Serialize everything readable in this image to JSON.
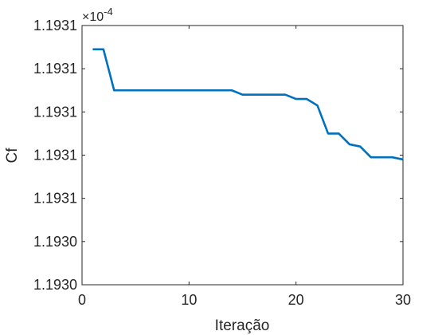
{
  "chart_data": {
    "type": "line",
    "xlabel": "Iteração",
    "ylabel": "Cf",
    "exponent_label": "×10",
    "exponent_power": "-4",
    "xlim": [
      0,
      30
    ],
    "ylim": [
      1.19298,
      1.1931
    ],
    "x_ticks": [
      0,
      10,
      20,
      30
    ],
    "x_tick_labels": [
      "0",
      "10",
      "20",
      "30"
    ],
    "y_ticks": [
      1.19298,
      1.193,
      1.19302,
      1.19304,
      1.19306,
      1.19308,
      1.1931
    ],
    "y_tick_labels": [
      "1.1930",
      "1.1930",
      "1.1931",
      "1.1931",
      "1.1931",
      "1.1931",
      "1.1931"
    ],
    "grid": false,
    "line_color": "#0072BD",
    "axis_color": "#262626",
    "series": [
      {
        "x": [
          1,
          2,
          3,
          4,
          5,
          6,
          7,
          8,
          9,
          10,
          11,
          12,
          13,
          14,
          15,
          16,
          17,
          18,
          19,
          20,
          21,
          22,
          23,
          24,
          25,
          26,
          27,
          28,
          29,
          30
        ],
        "values": [
          1.193089,
          1.193089,
          1.19307,
          1.19307,
          1.19307,
          1.19307,
          1.19307,
          1.19307,
          1.19307,
          1.19307,
          1.19307,
          1.19307,
          1.19307,
          1.19307,
          1.193068,
          1.193068,
          1.193068,
          1.193068,
          1.193068,
          1.193066,
          1.193066,
          1.193063,
          1.19305,
          1.19305,
          1.193045,
          1.193044,
          1.193039,
          1.193039,
          1.193039,
          1.193038
        ]
      }
    ]
  }
}
